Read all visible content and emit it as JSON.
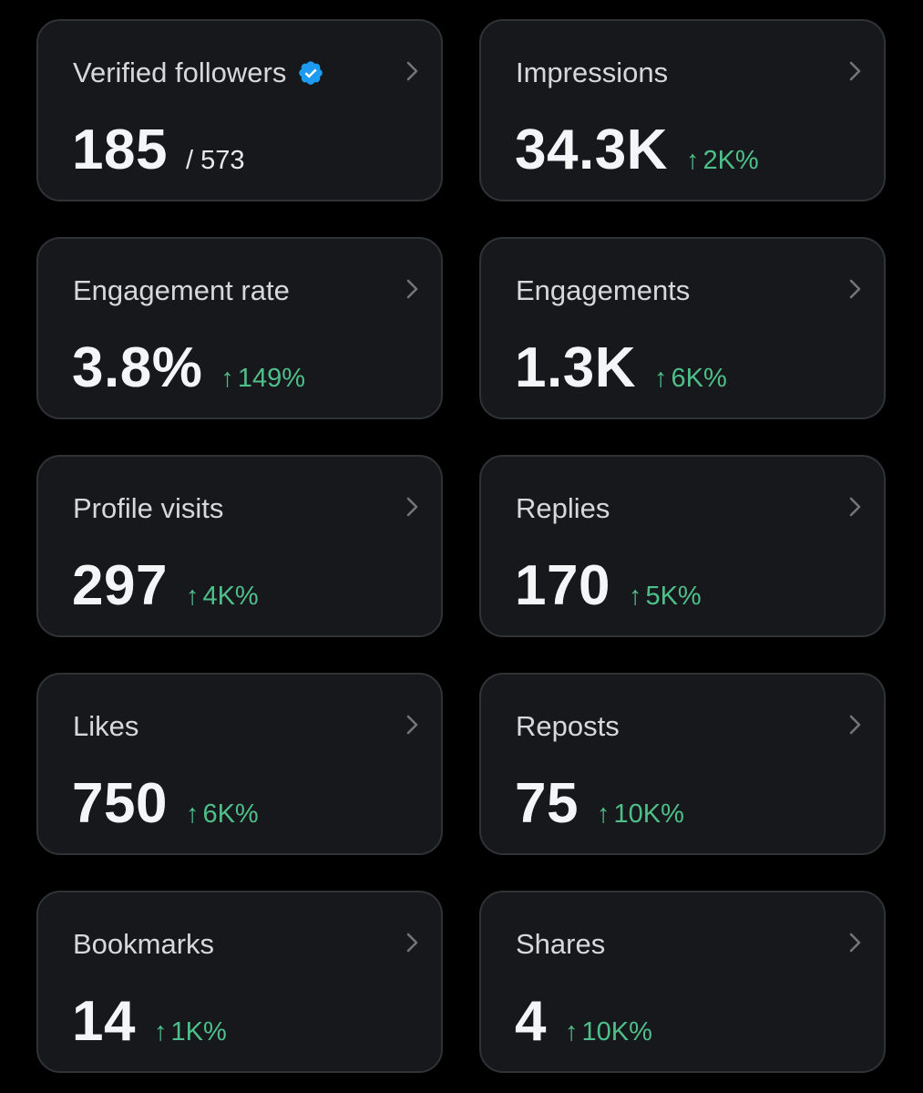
{
  "colors": {
    "background": "#000000",
    "card": "#16181c",
    "card_border": "#2f3336",
    "positive": "#4fbf8a",
    "verified_badge": "#1d9bf0"
  },
  "cards": [
    {
      "title": "Verified followers",
      "value": "185",
      "total": "/ 573",
      "verified_icon": "verified-badge-icon"
    },
    {
      "title": "Impressions",
      "value": "34.3K",
      "arrow": "↑",
      "change": "2K%"
    },
    {
      "title": "Engagement rate",
      "value": "3.8%",
      "arrow": "↑",
      "change": "149%"
    },
    {
      "title": "Engagements",
      "value": "1.3K",
      "arrow": "↑",
      "change": "6K%"
    },
    {
      "title": "Profile visits",
      "value": "297",
      "arrow": "↑",
      "change": "4K%"
    },
    {
      "title": "Replies",
      "value": "170",
      "arrow": "↑",
      "change": "5K%"
    },
    {
      "title": "Likes",
      "value": "750",
      "arrow": "↑",
      "change": "6K%"
    },
    {
      "title": "Reposts",
      "value": "75",
      "arrow": "↑",
      "change": "10K%"
    },
    {
      "title": "Bookmarks",
      "value": "14",
      "arrow": "↑",
      "change": "1K%"
    },
    {
      "title": "Shares",
      "value": "4",
      "arrow": "↑",
      "change": "10K%"
    }
  ]
}
